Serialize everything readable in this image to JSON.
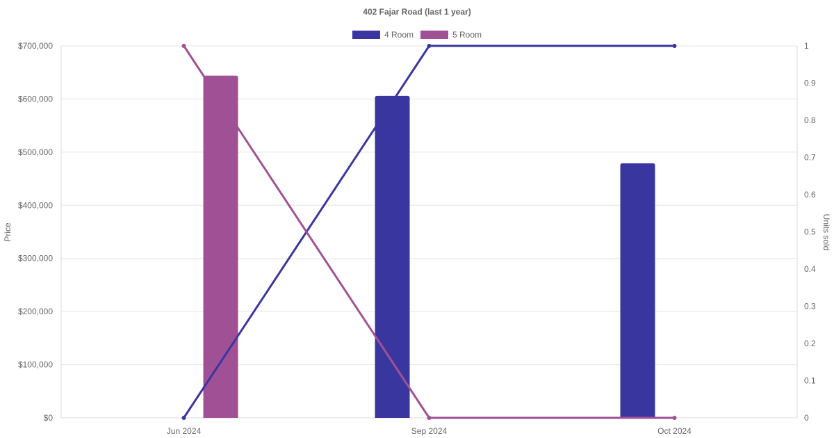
{
  "chart_data": {
    "type": "bar",
    "title": "402 Fajar Road (last 1 year)",
    "categories": [
      "Jun 2024",
      "Sep 2024",
      "Oct 2024"
    ],
    "y_left": {
      "label": "Price",
      "ylim": [
        0,
        700000
      ],
      "ticks": [
        "$0",
        "$100,000",
        "$200,000",
        "$300,000",
        "$400,000",
        "$500,000",
        "$600,000",
        "$700,000"
      ]
    },
    "y_right": {
      "label": "Units sold",
      "ylim": [
        0,
        1
      ],
      "ticks": [
        "0",
        "0.1",
        "0.2",
        "0.3",
        "0.4",
        "0.5",
        "0.6",
        "0.7",
        "0.8",
        "0.9",
        "1"
      ]
    },
    "series": [
      {
        "name": "4 Room",
        "color": "#3a36a0",
        "price_values": [
          null,
          606000,
          479000
        ],
        "units_sold": [
          0,
          1,
          1
        ]
      },
      {
        "name": "5 Room",
        "color": "#a05196",
        "price_values": [
          644000,
          null,
          null
        ],
        "units_sold": [
          1,
          0,
          0
        ]
      }
    ],
    "bars_axis": "left",
    "lines_axis": "right",
    "grid": true,
    "legend_position": "top-center"
  }
}
